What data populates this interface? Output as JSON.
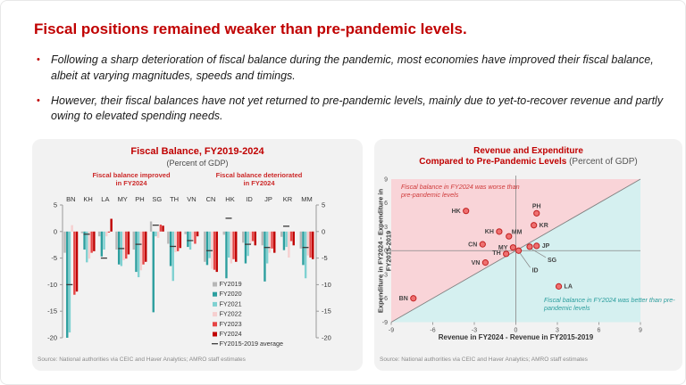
{
  "slide": {
    "title": "Fiscal positions remained weaker than pre-pandemic levels.",
    "bullet_marker": "•",
    "bullets": [
      "Following a sharp deterioration of fiscal balance during the pandemic, most economies have improved their fiscal balance, albeit at varying magnitudes, speeds and timings.",
      "However, their fiscal balances have not yet returned to pre-pandemic levels, mainly due to yet-to-recover revenue and partly owing to elevated spending needs."
    ]
  },
  "chart_data": [
    {
      "type": "bar",
      "title": "Fiscal Balance, FY2019-2024",
      "subtitle": "(Percent of GDP)",
      "groups": [
        {
          "label": "Fiscal balance improved",
          "sub": "in FY2024",
          "categories": [
            "BN",
            "KH",
            "LA",
            "MY",
            "PH",
            "SG",
            "TH",
            "VN"
          ]
        },
        {
          "label": "Fiscal balance deteriorated",
          "sub": "in FY2024",
          "categories": [
            "CN",
            "HK",
            "ID",
            "JP",
            "KR",
            "MM"
          ]
        }
      ],
      "categories": [
        "BN",
        "KH",
        "LA",
        "MY",
        "PH",
        "SG",
        "TH",
        "VN",
        "CN",
        "HK",
        "ID",
        "JP",
        "KR",
        "MM"
      ],
      "ylim": [
        -20,
        5
      ],
      "yticks": [
        5,
        0,
        -5,
        -10,
        -15,
        -20
      ],
      "series": [
        {
          "name": "FY2019",
          "color": "#b7b7b7",
          "values": [
            -4.0,
            -0.3,
            -0.9,
            -3.4,
            -3.4,
            1.9,
            -2.3,
            -0.5,
            -5.7,
            -0.6,
            -2.1,
            -2.6,
            -1.0,
            -3.2
          ]
        },
        {
          "name": "FY2020",
          "color": "#2d9f9f",
          "values": [
            -20.0,
            -3.4,
            -4.7,
            -6.2,
            -7.6,
            -15.2,
            -6.5,
            -2.9,
            -6.3,
            -8.8,
            -6.0,
            -9.4,
            -3.5,
            -6.3
          ]
        },
        {
          "name": "FY2021",
          "color": "#7fd1d1",
          "values": [
            -19.0,
            -5.8,
            -3.4,
            -6.5,
            -8.6,
            -0.9,
            -9.3,
            -3.4,
            -5.0,
            -4.9,
            -4.6,
            -6.0,
            -2.9,
            -8.8
          ]
        },
        {
          "name": "FY2022",
          "color": "#f6cfcf",
          "values": [
            1.2,
            -5.1,
            -0.9,
            -5.4,
            -7.3,
            -1.2,
            -3.9,
            -1.5,
            -7.0,
            -6.0,
            -2.4,
            -4.0,
            -4.9,
            -4.5
          ]
        },
        {
          "name": "FY2023",
          "color": "#e64545",
          "values": [
            -11.9,
            -4.0,
            -0.2,
            -5.1,
            -6.2,
            1.3,
            -3.7,
            -2.3,
            -7.2,
            -5.2,
            -1.8,
            -3.2,
            -1.8,
            -4.9
          ]
        },
        {
          "name": "FY2024",
          "color": "#c00000",
          "values": [
            -11.3,
            -3.7,
            2.4,
            -4.3,
            -5.7,
            1.1,
            -3.1,
            -0.9,
            -7.6,
            -5.7,
            -2.6,
            -4.0,
            -2.6,
            -5.2
          ]
        }
      ],
      "average": {
        "name": "FY2015-2019 average",
        "color": "#3a3a3a",
        "values": [
          -10.0,
          -0.5,
          -5.0,
          -3.2,
          -2.4,
          1.2,
          -2.8,
          -1.7,
          -3.6,
          2.5,
          -2.4,
          -3.0,
          1.0,
          -3.0
        ]
      },
      "source": "Source: National authorities via CEIC and Haver Analytics; AMRO staff estimates"
    },
    {
      "type": "scatter",
      "title": "Revenue and Expenditure",
      "title2": "Compared to Pre-Pandemic Levels",
      "title2_suffix": " (Percent of GDP)",
      "xlabel": "Revenue in FY2024 - Revenue in FY2015-2019",
      "ylabel": "Expenditure in FY2024 - Expenditure in FY2015-2019",
      "xlim": [
        -9,
        9
      ],
      "ylim": [
        -9,
        9
      ],
      "xticks": [
        -9,
        -6,
        -3,
        0,
        3,
        6,
        9
      ],
      "yticks": [
        9,
        6,
        3,
        0,
        -3,
        -6,
        -9
      ],
      "region_worse_color": "#f9d4d8",
      "region_better_color": "#d5f0f0",
      "point_fill": "#ef7070",
      "point_stroke": "#c02020",
      "annotation_worse": "Fiscal balance in FY2024 was worse than pre-pandemic levels",
      "annotation_better": "Fiscal balance in FY2024 was better than pre-pandemic levels",
      "points": [
        {
          "label": "BN",
          "x": -7.4,
          "y": -6.0,
          "lx": -6,
          "ly": 0
        },
        {
          "label": "VN",
          "x": -2.2,
          "y": -1.5,
          "lx": -6,
          "ly": 0
        },
        {
          "label": "TH",
          "x": -0.7,
          "y": -0.4,
          "lx": -6,
          "ly": -1
        },
        {
          "label": "MY",
          "x": -0.2,
          "y": 0.4,
          "lx": -6,
          "ly": 0
        },
        {
          "label": "CN",
          "x": -2.4,
          "y": 0.8,
          "lx": -6,
          "ly": 0
        },
        {
          "label": "KH",
          "x": -1.2,
          "y": 2.4,
          "lx": -6,
          "ly": 0
        },
        {
          "label": "MM",
          "x": -0.5,
          "y": 1.8,
          "lx": 3,
          "ly": -5
        },
        {
          "label": "HK",
          "x": -3.6,
          "y": 5.0,
          "lx": -6,
          "ly": 0
        },
        {
          "label": "PH",
          "x": 1.5,
          "y": 4.7,
          "lx": 0,
          "ly": -8,
          "anchor": "middle"
        },
        {
          "label": "KR",
          "x": 1.3,
          "y": 3.2,
          "lx": 6,
          "ly": 0
        },
        {
          "label": "JP",
          "x": 1.5,
          "y": 0.6,
          "lx": 6,
          "ly": 0
        },
        {
          "label": "SG",
          "x": 1.0,
          "y": 0.5,
          "lx": 20,
          "ly": 15,
          "leader": true
        },
        {
          "label": "ID",
          "x": 0.2,
          "y": 0.0,
          "lx": 15,
          "ly": 22,
          "leader": true
        },
        {
          "label": "LA",
          "x": 3.1,
          "y": -4.5,
          "lx": 6,
          "ly": 0
        }
      ],
      "source": "Source: National authorities via CEIC and Haver Analytics; AMRO staff estimates"
    }
  ]
}
